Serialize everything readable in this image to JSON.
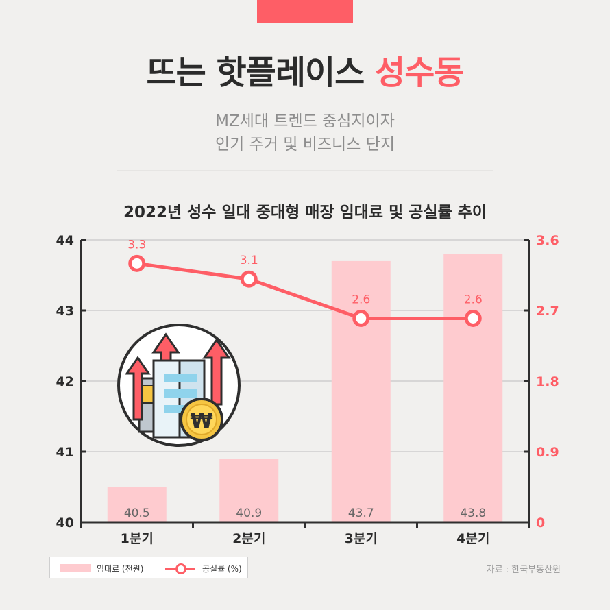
{
  "header": {
    "title_main": "뜨는 핫플레이스",
    "title_accent": "성수동",
    "subtitle_line1": "MZ세대 트렌드 중심지이자",
    "subtitle_line2": "인기 주거 및 비즈니스 단지"
  },
  "colors": {
    "accent": "#fe5e66",
    "bar": "#fecbcf",
    "text": "#2b2b2b"
  },
  "legend": {
    "bar_label": "임대료 (천원)",
    "line_label": "공실률 (%)"
  },
  "source": "자료 : 한국부동산원",
  "illustration": {
    "icon": "building-with-rising-arrows-and-won-coin-icon",
    "coin_symbol": "₩"
  },
  "chart_data": {
    "type": "bar+line",
    "title": "2022년 성수 일대 중대형 매장 임대료 및 공실률 추이",
    "categories": [
      "1분기",
      "2분기",
      "3분기",
      "4분기"
    ],
    "series": [
      {
        "name": "임대료 (천원)",
        "type": "bar",
        "axis": "left",
        "values": [
          40.5,
          40.9,
          43.7,
          43.8
        ]
      },
      {
        "name": "공실률 (%)",
        "type": "line",
        "axis": "right",
        "values": [
          3.3,
          3.1,
          2.6,
          2.6
        ]
      }
    ],
    "y_left": {
      "min": 40,
      "max": 44,
      "ticks": [
        "40",
        "41",
        "42",
        "43",
        "44"
      ]
    },
    "y_right": {
      "min": 0,
      "max": 3.6,
      "ticks": [
        "0",
        "0.9",
        "1.8",
        "2.7",
        "3.6"
      ]
    },
    "grid": true,
    "legend_position": "bottom-left"
  }
}
